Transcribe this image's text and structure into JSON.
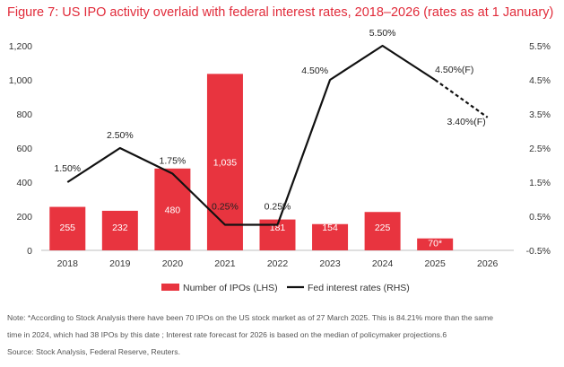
{
  "title": "Figure 7: US IPO activity overlaid with federal interest rates, 2018–2026 (rates as at 1 January)",
  "notes": {
    "line1": "Note: *According to Stock Analysis there have been 70 IPOs on the US stock market as of 27 March 2025. This is 84.21% more than the same",
    "line2": "time in 2024, which had 38 IPOs by this date ; Interest rate forecast for 2026 is based on the median of policymaker projections.6",
    "source": "Source: Stock Analysis, Federal Reserve, Reuters."
  },
  "colors": {
    "bar": "#e8343f",
    "line": "#111111",
    "title": "#e12b3a",
    "grid": "#d9d9d9"
  },
  "chart_data": {
    "type": "bar+line",
    "title": "Figure 7: US IPO activity overlaid with federal interest rates, 2018–2026 (rates as at 1 January)",
    "categories": [
      "2018",
      "2019",
      "2020",
      "2021",
      "2022",
      "2023",
      "2024",
      "2025",
      "2026"
    ],
    "bars": {
      "name": "Number of IPOs (LHS)",
      "values": [
        255,
        232,
        480,
        1035,
        181,
        154,
        225,
        70,
        null
      ],
      "labels": [
        "255",
        "232",
        "480",
        "1,035",
        "181",
        "154",
        "225",
        "70*",
        ""
      ]
    },
    "line": {
      "name": "Fed interest rates (RHS)",
      "values": [
        1.5,
        2.5,
        1.75,
        0.25,
        0.25,
        4.5,
        5.5,
        4.5,
        3.4
      ],
      "labels": [
        "1.50%",
        "2.50%",
        "1.75%",
        "0.25%",
        "0.25%",
        "4.50%",
        "5.50%",
        "4.50%(F)",
        "3.40%(F)"
      ],
      "forecast_from_index": 7
    },
    "y_left": {
      "min": 0,
      "max": 1200,
      "ticks": [
        0,
        200,
        400,
        600,
        800,
        1000,
        1200
      ],
      "tick_labels": [
        "0",
        "200",
        "400",
        "600",
        "800",
        "1,000",
        "1,200"
      ]
    },
    "y_right": {
      "min": -0.5,
      "max": 5.5,
      "ticks": [
        -0.5,
        0.5,
        1.5,
        2.5,
        3.5,
        4.5,
        5.5
      ],
      "tick_labels": [
        "-0.5%",
        "0.5%",
        "1.5%",
        "2.5%",
        "3.5%",
        "4.5%",
        "5.5%"
      ]
    },
    "legend": [
      "Number of IPOs (LHS)",
      "Fed interest rates (RHS)"
    ],
    "legend_position": "bottom-center"
  }
}
